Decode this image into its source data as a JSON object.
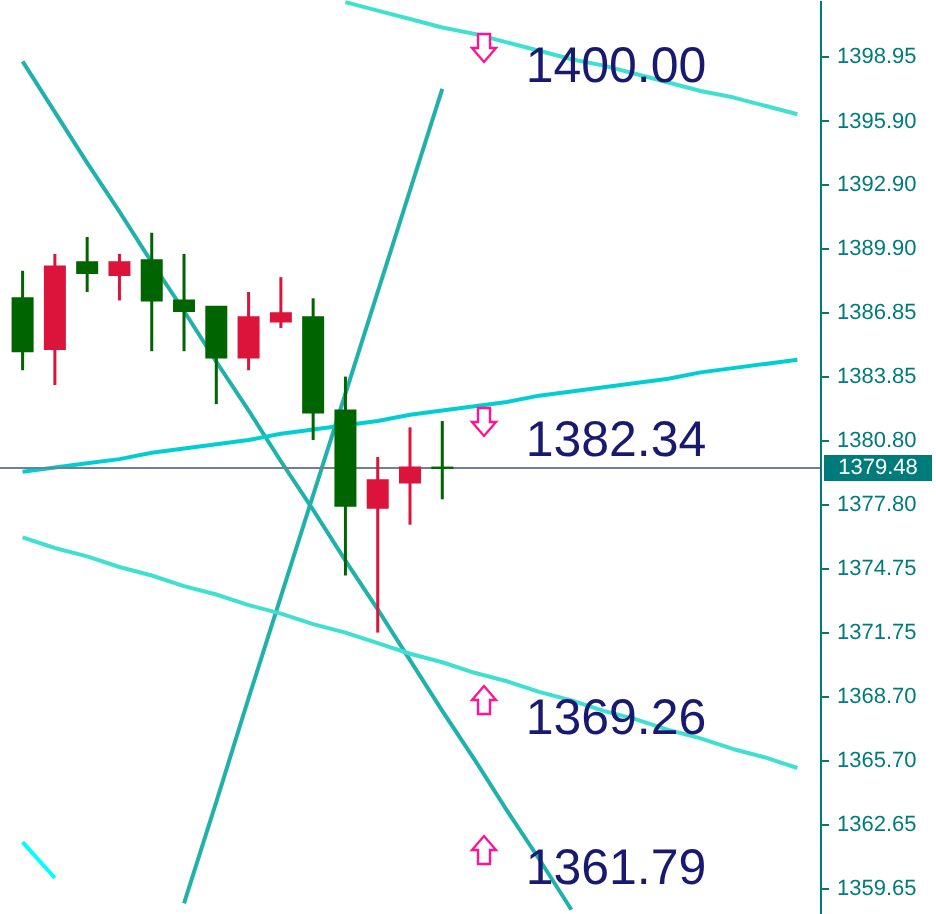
{
  "chart_data": {
    "type": "candlestick",
    "categories": [
      null,
      null,
      null,
      null,
      null,
      null,
      null,
      null,
      null,
      null,
      null,
      null,
      null,
      null,
      null,
      null,
      null,
      null,
      null,
      null,
      null,
      null,
      null,
      null,
      null
    ],
    "ohlc": [
      [
        1387.5,
        1388.8,
        1384.1,
        1385.0
      ],
      [
        1385.1,
        1389.6,
        1383.4,
        1389.0
      ],
      [
        1389.2,
        1390.4,
        1387.8,
        1388.7
      ],
      [
        1388.6,
        1389.6,
        1387.4,
        1389.2
      ],
      [
        1389.3,
        1390.6,
        1385.0,
        1387.4
      ],
      [
        1387.4,
        1389.6,
        1385.0,
        1386.9
      ],
      [
        1387.1,
        1387.1,
        1382.5,
        1384.7
      ],
      [
        1384.7,
        1387.8,
        1384.1,
        1386.6
      ],
      [
        1386.4,
        1388.5,
        1386.1,
        1386.8
      ],
      [
        1386.6,
        1387.5,
        1380.8,
        1382.1
      ],
      [
        1382.2,
        1383.8,
        1374.4,
        1377.7
      ],
      [
        1377.6,
        1380.0,
        1371.7,
        1378.9
      ],
      [
        1378.8,
        1381.4,
        1376.8,
        1379.5
      ],
      [
        1379.5,
        1381.7,
        1378.0,
        1379.48
      ],
      null,
      null,
      null,
      null,
      null,
      null,
      null,
      null,
      null,
      null,
      null
    ],
    "colors": [
      "#006400",
      "#dc143c",
      "#006400",
      "#dc143c",
      "#006400",
      "#006400",
      "#006400",
      "#dc143c",
      "#dc143c",
      "#006400",
      "#006400",
      "#dc143c",
      "#dc143c",
      "#006400",
      null,
      null,
      null,
      null,
      null,
      null,
      null,
      null,
      null,
      null,
      null
    ],
    "series": [
      {
        "type": "line",
        "color": "#40e0d0",
        "values": [
          null,
          null,
          null,
          null,
          null,
          null,
          null,
          null,
          null,
          null,
          1401.5,
          1401.1,
          1400.7,
          1400.3,
          1400.0,
          1399.6,
          1399.2,
          1398.8,
          1398.5,
          1398.1,
          1397.7,
          1397.3,
          1397.0,
          1396.6,
          1396.2
        ]
      },
      {
        "type": "line",
        "color": "#20b2aa",
        "values": [
          1398.7,
          1396.3,
          1393.9,
          1391.6,
          1389.2,
          1386.9,
          1384.5,
          1382.2,
          1379.8,
          1377.5,
          1375.1,
          1372.8,
          1370.4,
          1368.0,
          1365.7,
          1363.3,
          1361.0,
          1358.6,
          null,
          null,
          null,
          null,
          null,
          null,
          null
        ]
      },
      {
        "type": "line",
        "color": "#20b2aa",
        "values": [
          null,
          null,
          null,
          null,
          null,
          1358.9,
          1363.7,
          1368.6,
          1373.4,
          1378.2,
          1383.0,
          1387.8,
          1392.6,
          1397.4,
          null,
          null,
          null,
          null,
          null,
          null,
          null,
          null,
          null,
          null,
          null
        ]
      },
      {
        "type": "line",
        "color": "#00ced1",
        "values": [
          1379.3,
          1379.5,
          1379.7,
          1379.9,
          1380.2,
          1380.4,
          1380.6,
          1380.8,
          1381.1,
          1381.3,
          null,
          1381.7,
          1382.0,
          1382.2,
          1382.4,
          1382.6,
          1382.9,
          1383.1,
          1383.3,
          1383.5,
          1383.7,
          1384.0,
          1384.2,
          1384.4,
          1384.6
        ]
      },
      {
        "type": "line",
        "color": "#40e0d0",
        "values": [
          1376.2,
          1375.7,
          1375.3,
          1374.8,
          1374.4,
          1373.9,
          1373.5,
          1373.0,
          1372.6,
          1372.1,
          1371.7,
          1371.2,
          1370.7,
          1370.3,
          1369.8,
          1369.4,
          1368.9,
          1368.5,
          1368.0,
          1367.6,
          1367.1,
          1366.7,
          1366.2,
          1365.8,
          1365.3
        ]
      },
      {
        "type": "line",
        "color": "#00ffff",
        "values": [
          1361.8,
          1360.1,
          null,
          null,
          null,
          null,
          null,
          null,
          null,
          null,
          null,
          null,
          null,
          null,
          null,
          null,
          null,
          null,
          null,
          null,
          null,
          null,
          null,
          null,
          null
        ]
      }
    ],
    "ref_lines": [
      {
        "axis": "y",
        "value": 1379.48,
        "label": "1379.48",
        "color": "#708090"
      }
    ],
    "annotations": [
      "1400.00",
      "1382.34",
      "1369.26",
      "1361.79"
    ],
    "ylim": [
      1358.4,
      1401.6
    ],
    "yticks": [
      {
        "value": 1398.95,
        "label": "1398.95"
      },
      {
        "value": 1395.9,
        "label": "1395.90"
      },
      {
        "value": 1392.9,
        "label": "1392.90"
      },
      {
        "value": 1389.9,
        "label": "1389.90"
      },
      {
        "value": 1386.85,
        "label": "1386.85"
      },
      {
        "value": 1383.85,
        "label": "1383.85"
      },
      {
        "value": 1380.8,
        "label": "1380.80"
      },
      {
        "value": 1377.8,
        "label": "1377.80"
      },
      {
        "value": 1374.75,
        "label": "1374.75"
      },
      {
        "value": 1371.75,
        "label": "1371.75"
      },
      {
        "value": 1368.7,
        "label": "1368.70"
      },
      {
        "value": 1365.7,
        "label": "1365.70"
      },
      {
        "value": 1362.65,
        "label": "1362.65"
      },
      {
        "value": 1359.65,
        "label": "1359.65"
      }
    ],
    "tick_labels": "y"
  }
}
